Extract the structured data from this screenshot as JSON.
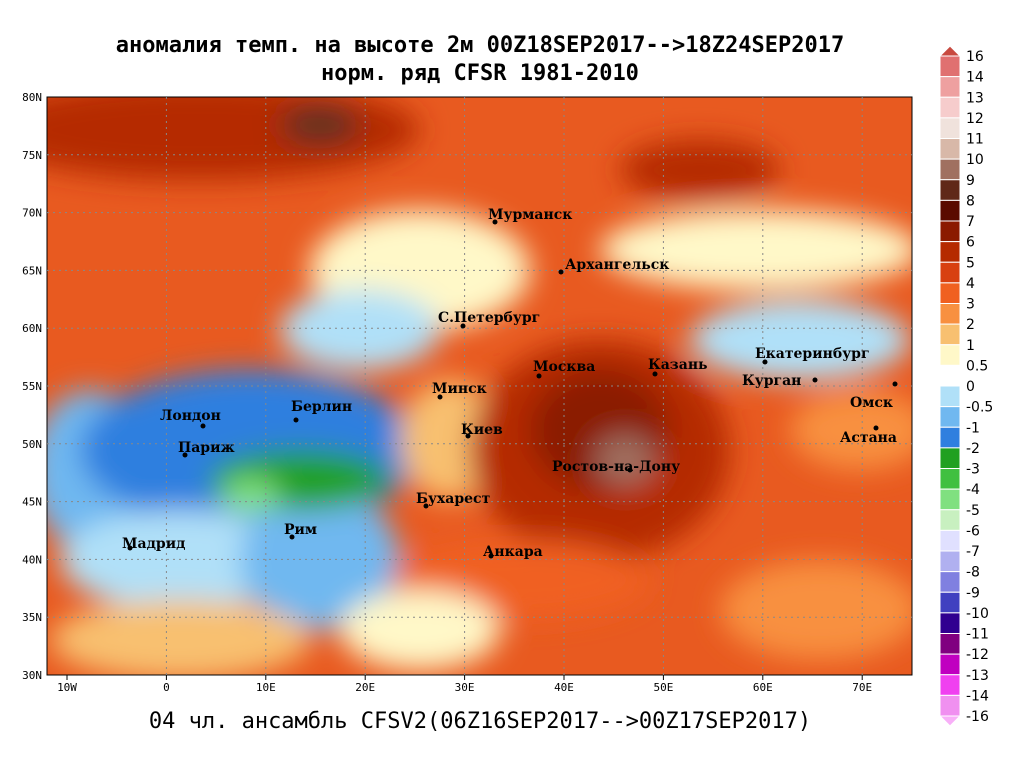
{
  "title": "аномалия темп. на высоте 2м 00Z18SEP2017-->18Z24SEP2017",
  "subtitle": "норм. ряд CFSR 1981-2010",
  "footer": "04 чл. ансамбль CFSV2(06Z16SEP2017-->00Z17SEP2017)",
  "map": {
    "lon_labels": [
      "10W",
      "0",
      "10E",
      "20E",
      "30E",
      "40E",
      "50E",
      "60E",
      "70E"
    ],
    "lat_labels": [
      "80N",
      "75N",
      "70N",
      "65N",
      "60N",
      "55N",
      "50N",
      "45N",
      "40N",
      "35N",
      "30N"
    ],
    "cities": [
      "Мурманск",
      "Архангельск",
      "С.Петербург",
      "Москва",
      "Казань",
      "Екатеринбург",
      "Курган",
      "Омск",
      "Астана",
      "Минск",
      "Берлин",
      "Лондон",
      "Париж",
      "Киев",
      "Ростов-на-Дону",
      "Бухарест",
      "Рим",
      "Мадрид",
      "Анкара"
    ]
  },
  "colorbar": {
    "labels": [
      "16",
      "14",
      "13",
      "12",
      "11",
      "10",
      "9",
      "8",
      "7",
      "6",
      "5",
      "4",
      "3",
      "2",
      "1",
      "0.5",
      "0",
      "-0.5",
      "-1",
      "-2",
      "-3",
      "-4",
      "-5",
      "-6",
      "-7",
      "-8",
      "-9",
      "-10",
      "-11",
      "-12",
      "-13",
      "-14",
      "-16"
    ],
    "colors": [
      "#c84a40",
      "#e07070",
      "#eea0a0",
      "#f6cccc",
      "#f0e2dc",
      "#d8b8a8",
      "#a07060",
      "#602818",
      "#5a0a00",
      "#8b1a00",
      "#b52a00",
      "#d84010",
      "#f06020",
      "#f89040",
      "#f8c070",
      "#fff8c8",
      "#ffffff",
      "#b0e0f8",
      "#70b8f0",
      "#2f7fdf",
      "#20a020",
      "#40c040",
      "#80e080",
      "#c8f0c0",
      "#e0e0ff",
      "#b0b0f0",
      "#8080e0",
      "#4040c0",
      "#300090",
      "#800080",
      "#c000c0",
      "#f040f0",
      "#f090f0",
      "#f8b0f8"
    ]
  }
}
